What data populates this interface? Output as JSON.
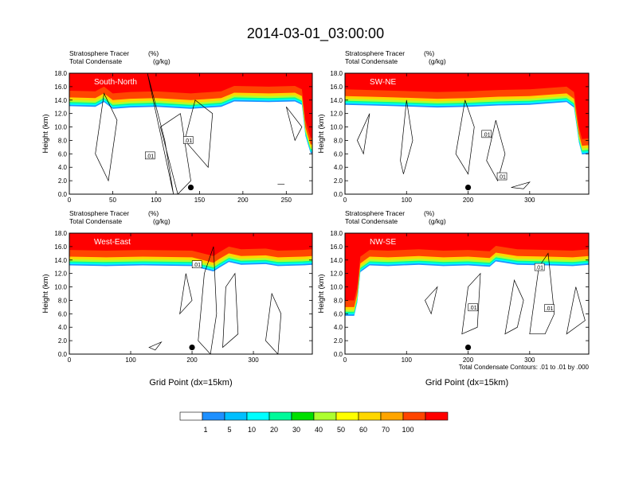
{
  "figure": {
    "title": "2014-03-01_03:00:00",
    "contour_info": "Total Condensate Contours: .01 to .01 by .000"
  },
  "chart_data": [
    {
      "type": "heatmap",
      "subtitle_left": [
        "Stratosphere Tracer",
        "Total Condensate"
      ],
      "subtitle_units": [
        "(%)",
        "(g/kg)"
      ],
      "panel_label": "South-North",
      "ylabel": "Height (km)",
      "xlabel": "",
      "xlim": [
        0,
        280
      ],
      "ylim": [
        0,
        18
      ],
      "xticks": [
        0,
        50,
        100,
        150,
        200,
        250
      ],
      "yticks": [
        0.0,
        2.0,
        4.0,
        6.0,
        8.0,
        10.0,
        12.0,
        14.0,
        16.0,
        18.0
      ],
      "tracer_base_km": [
        [
          0,
          15.4
        ],
        [
          30,
          15.3
        ],
        [
          40,
          16.0
        ],
        [
          50,
          15.0
        ],
        [
          70,
          15.2
        ],
        [
          100,
          15.3
        ],
        [
          140,
          15.0
        ],
        [
          175,
          15.3
        ],
        [
          190,
          16.1
        ],
        [
          230,
          16.0
        ],
        [
          260,
          16.1
        ],
        [
          268,
          15.6
        ],
        [
          272,
          11.0
        ],
        [
          278,
          8.4
        ],
        [
          280,
          8.4
        ]
      ],
      "contour_labels": [
        {
          "text": ".01",
          "x": 93,
          "y": 5.7
        },
        {
          "text": ".01",
          "x": 137,
          "y": 8.0
        }
      ],
      "station_marker": {
        "x": 140,
        "y": 1.0
      }
    },
    {
      "type": "heatmap",
      "subtitle_left": [
        "Stratosphere Tracer",
        "Total Condensate"
      ],
      "subtitle_units": [
        "(%)",
        "(g/kg)"
      ],
      "panel_label": "SW-NE",
      "ylabel": "Height (km)",
      "xlabel": "",
      "xlim": [
        0,
        396
      ],
      "ylim": [
        0,
        18
      ],
      "xticks": [
        0,
        100,
        200,
        300
      ],
      "yticks": [
        0.0,
        2.0,
        4.0,
        6.0,
        8.0,
        10.0,
        12.0,
        14.0,
        16.0,
        18.0
      ],
      "tracer_base_km": [
        [
          0,
          15.6
        ],
        [
          40,
          15.5
        ],
        [
          80,
          15.4
        ],
        [
          150,
          15.2
        ],
        [
          200,
          15.3
        ],
        [
          250,
          15.5
        ],
        [
          300,
          15.6
        ],
        [
          360,
          16.0
        ],
        [
          372,
          15.2
        ],
        [
          380,
          10.0
        ],
        [
          385,
          8.2
        ],
        [
          396,
          8.3
        ]
      ],
      "contour_labels": [
        {
          "text": ".01",
          "x": 230,
          "y": 8.9
        },
        {
          "text": ".01",
          "x": 255,
          "y": 2.6
        }
      ],
      "station_marker": {
        "x": 200,
        "y": 1.0
      }
    },
    {
      "type": "heatmap",
      "subtitle_left": [
        "Stratosphere Tracer",
        "Total Condensate"
      ],
      "subtitle_units": [
        "(%)",
        "(g/kg)"
      ],
      "panel_label": "West-East",
      "ylabel": "Height (km)",
      "xlabel": "Grid Point (dx=15km)",
      "xlim": [
        0,
        396
      ],
      "ylim": [
        0,
        18
      ],
      "xticks": [
        0,
        100,
        200,
        300
      ],
      "yticks": [
        0.0,
        2.0,
        4.0,
        6.0,
        8.0,
        10.0,
        12.0,
        14.0,
        16.0,
        18.0
      ],
      "tracer_base_km": [
        [
          0,
          15.5
        ],
        [
          60,
          15.4
        ],
        [
          120,
          15.5
        ],
        [
          200,
          15.4
        ],
        [
          235,
          14.6
        ],
        [
          245,
          15.2
        ],
        [
          260,
          16.0
        ],
        [
          280,
          15.6
        ],
        [
          320,
          15.7
        ],
        [
          340,
          15.4
        ],
        [
          380,
          15.5
        ],
        [
          396,
          15.6
        ]
      ],
      "contour_labels": [
        {
          "text": ".01",
          "x": 208,
          "y": 13.3
        }
      ],
      "station_marker": {
        "x": 200,
        "y": 1.0
      }
    },
    {
      "type": "heatmap",
      "subtitle_left": [
        "Stratosphere Tracer",
        "Total Condensate"
      ],
      "subtitle_units": [
        "(%)",
        "(g/kg)"
      ],
      "panel_label": "NW-SE",
      "ylabel": "Height (km)",
      "xlabel": "Grid Point (dx=15km)",
      "xlim": [
        0,
        396
      ],
      "ylim": [
        0,
        18
      ],
      "xticks": [
        0,
        100,
        200,
        300
      ],
      "yticks": [
        0.0,
        2.0,
        4.0,
        6.0,
        8.0,
        10.0,
        12.0,
        14.0,
        16.0,
        18.0
      ],
      "tracer_base_km": [
        [
          0,
          8.0
        ],
        [
          15,
          8.0
        ],
        [
          20,
          10.0
        ],
        [
          25,
          14.5
        ],
        [
          40,
          15.5
        ],
        [
          70,
          15.4
        ],
        [
          120,
          15.6
        ],
        [
          160,
          15.4
        ],
        [
          200,
          15.5
        ],
        [
          235,
          15.3
        ],
        [
          245,
          16.1
        ],
        [
          280,
          15.6
        ],
        [
          330,
          15.5
        ],
        [
          370,
          15.4
        ],
        [
          396,
          15.6
        ]
      ],
      "contour_labels": [
        {
          "text": ".01",
          "x": 208,
          "y": 6.9
        },
        {
          "text": ".01",
          "x": 316,
          "y": 12.9
        },
        {
          "text": ".01",
          "x": 332,
          "y": 6.8
        }
      ],
      "station_marker": {
        "x": 200,
        "y": 1.0
      }
    }
  ],
  "colorbar": {
    "labels": [
      "1",
      "5",
      "10",
      "20",
      "30",
      "40",
      "50",
      "60",
      "70",
      "100"
    ],
    "colors": [
      "#ffffff",
      "#1e90ff",
      "#00bfff",
      "#00ffff",
      "#00fa9a",
      "#00e000",
      "#adff2f",
      "#ffff00",
      "#ffd700",
      "#ffa500",
      "#ff4500",
      "#ff0000"
    ]
  }
}
